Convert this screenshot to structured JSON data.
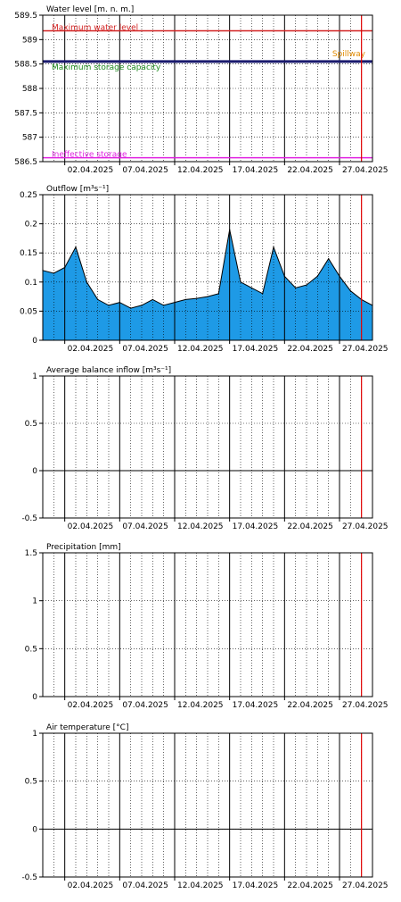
{
  "colors": {
    "max_water": "#d22020",
    "max_storage": "#1a1a6e",
    "storage_label": "#1f8a1f",
    "spillway": "#e08a00",
    "ineffective": "#e020e0",
    "outflow_fill": "#1e9ae6",
    "now_line": "#e00000",
    "grid": "#000000"
  },
  "chart_data": [
    {
      "type": "line",
      "title": "Water level [m. n. m.]",
      "ylim": [
        586.5,
        589.5
      ],
      "yticks": [
        586.5,
        587,
        587.5,
        588,
        588.5,
        589,
        589.5
      ],
      "x_date_range": [
        "2025-03-31",
        "2025-04-30"
      ],
      "xtick_labels": [
        "02.04.2025",
        "07.04.2025",
        "12.04.2025",
        "17.04.2025",
        "22.04.2025",
        "27.04.2025"
      ],
      "reference_lines": [
        {
          "name": "Maximum water level",
          "value": 589.18
        },
        {
          "name": "Maximum storage capacity",
          "value": 588.55
        },
        {
          "name": "Spillway",
          "value": 588.6
        },
        {
          "name": "Ineffective storage",
          "value": 586.58
        }
      ],
      "current_date": "2025-04-29"
    },
    {
      "type": "area",
      "title": "Outflow [m³s⁻¹]",
      "ylim": [
        0,
        0.25
      ],
      "yticks": [
        0,
        0.05,
        0.1,
        0.15,
        0.2,
        0.25
      ],
      "x_date_range": [
        "2025-03-31",
        "2025-04-30"
      ],
      "xtick_labels": [
        "02.04.2025",
        "07.04.2025",
        "12.04.2025",
        "17.04.2025",
        "22.04.2025",
        "27.04.2025"
      ],
      "x": [
        "2025-03-31",
        "2025-04-01",
        "2025-04-02",
        "2025-04-03",
        "2025-04-04",
        "2025-04-05",
        "2025-04-06",
        "2025-04-07",
        "2025-04-08",
        "2025-04-09",
        "2025-04-10",
        "2025-04-11",
        "2025-04-12",
        "2025-04-13",
        "2025-04-14",
        "2025-04-15",
        "2025-04-16",
        "2025-04-17",
        "2025-04-18",
        "2025-04-19",
        "2025-04-20",
        "2025-04-21",
        "2025-04-22",
        "2025-04-23",
        "2025-04-24",
        "2025-04-25",
        "2025-04-26",
        "2025-04-27",
        "2025-04-28",
        "2025-04-29",
        "2025-04-30"
      ],
      "values": [
        0.12,
        0.115,
        0.125,
        0.16,
        0.1,
        0.07,
        0.06,
        0.065,
        0.055,
        0.06,
        0.07,
        0.06,
        0.065,
        0.07,
        0.072,
        0.075,
        0.08,
        0.19,
        0.1,
        0.09,
        0.08,
        0.16,
        0.11,
        0.09,
        0.095,
        0.11,
        0.14,
        0.11,
        0.085,
        0.07,
        0.06
      ],
      "current_date": "2025-04-29"
    },
    {
      "type": "line",
      "title": "Average balance inflow  [m³s⁻¹]",
      "ylim": [
        -0.5,
        1
      ],
      "yticks": [
        -0.5,
        0,
        0.5,
        1
      ],
      "x_date_range": [
        "2025-03-31",
        "2025-04-30"
      ],
      "xtick_labels": [
        "02.04.2025",
        "07.04.2025",
        "12.04.2025",
        "17.04.2025",
        "22.04.2025",
        "27.04.2025"
      ],
      "current_date": "2025-04-29"
    },
    {
      "type": "bar",
      "title": "Precipitation [mm]",
      "ylim": [
        0,
        1.5
      ],
      "yticks": [
        0,
        0.5,
        1,
        1.5
      ],
      "x_date_range": [
        "2025-03-31",
        "2025-04-30"
      ],
      "xtick_labels": [
        "02.04.2025",
        "07.04.2025",
        "12.04.2025",
        "17.04.2025",
        "22.04.2025",
        "27.04.2025"
      ],
      "current_date": "2025-04-29"
    },
    {
      "type": "line",
      "title": "Air temperature [°C]",
      "ylim": [
        -0.5,
        1
      ],
      "yticks": [
        -0.5,
        0,
        0.5,
        1
      ],
      "x_date_range": [
        "2025-03-31",
        "2025-04-30"
      ],
      "xtick_labels": [
        "02.04.2025",
        "07.04.2025",
        "12.04.2025",
        "17.04.2025",
        "22.04.2025",
        "27.04.2025"
      ],
      "current_date": "2025-04-29"
    }
  ]
}
